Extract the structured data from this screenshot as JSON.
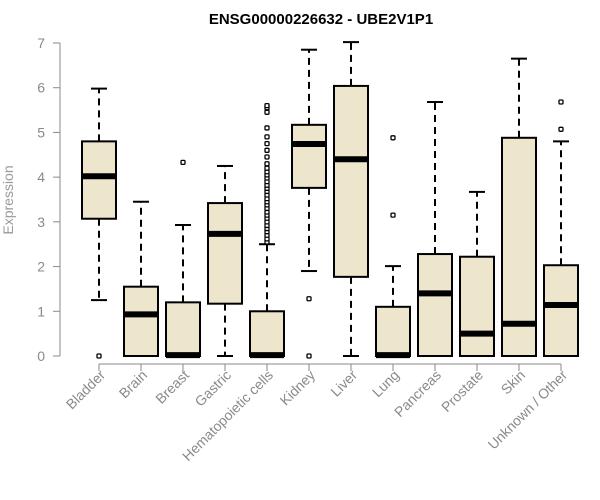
{
  "chart_data": {
    "type": "boxplot",
    "title": "ENSG00000226632 - UBE2V1P1",
    "ylabel": "Expression",
    "xlabel": "",
    "ylim": [
      0,
      7
    ],
    "yticks": [
      0,
      1,
      2,
      3,
      4,
      5,
      6,
      7
    ],
    "grid": false,
    "legend": "none",
    "box_fill": "#ede6cd",
    "categories": [
      "Bladder",
      "Brain",
      "Breast",
      "Gastric",
      "Hematopoietic cells",
      "Kidney",
      "Liver",
      "Lung",
      "Pancreas",
      "Prostate",
      "Skin",
      "Unknown / Other"
    ],
    "boxes": [
      {
        "name": "Bladder",
        "whisker_low": 1.25,
        "q1": 3.07,
        "median": 4.02,
        "q3": 4.8,
        "whisker_high": 5.98,
        "outliers": [
          0.0
        ]
      },
      {
        "name": "Brain",
        "whisker_low": 0.0,
        "q1": 0.0,
        "median": 0.93,
        "q3": 1.55,
        "whisker_high": 3.45,
        "outliers": []
      },
      {
        "name": "Breast",
        "whisker_low": 0.0,
        "q1": 0.0,
        "median": 0.02,
        "q3": 1.2,
        "whisker_high": 2.93,
        "outliers": [
          4.33
        ]
      },
      {
        "name": "Gastric",
        "whisker_low": 0.0,
        "q1": 1.17,
        "median": 2.73,
        "q3": 3.42,
        "whisker_high": 4.25,
        "outliers": []
      },
      {
        "name": "Hematopoietic cells",
        "whisker_low": 0.0,
        "q1": 0.0,
        "median": 0.02,
        "q3": 1.0,
        "whisker_high": 2.5,
        "outliers": [
          2.55,
          2.62,
          2.7,
          2.78,
          2.85,
          2.92,
          3.0,
          3.08,
          3.15,
          3.22,
          3.3,
          3.38,
          3.45,
          3.52,
          3.6,
          3.68,
          3.75,
          3.82,
          3.9,
          3.98,
          4.05,
          4.12,
          4.2,
          4.3,
          4.45,
          4.6,
          4.75,
          4.9,
          5.1,
          5.45,
          5.55,
          5.6
        ]
      },
      {
        "name": "Kidney",
        "whisker_low": 1.9,
        "q1": 3.76,
        "median": 4.74,
        "q3": 5.17,
        "whisker_high": 6.85,
        "outliers": [
          1.28,
          0.0
        ]
      },
      {
        "name": "Liver",
        "whisker_low": 0.0,
        "q1": 1.77,
        "median": 4.4,
        "q3": 6.04,
        "whisker_high": 7.02,
        "outliers": []
      },
      {
        "name": "Lung",
        "whisker_low": 0.0,
        "q1": 0.0,
        "median": 0.02,
        "q3": 1.1,
        "whisker_high": 2.01,
        "outliers": [
          3.15,
          4.88
        ]
      },
      {
        "name": "Pancreas",
        "whisker_low": 0.0,
        "q1": 0.0,
        "median": 1.4,
        "q3": 2.28,
        "whisker_high": 5.68,
        "outliers": []
      },
      {
        "name": "Prostate",
        "whisker_low": 0.0,
        "q1": 0.0,
        "median": 0.5,
        "q3": 2.22,
        "whisker_high": 3.67,
        "outliers": []
      },
      {
        "name": "Skin",
        "whisker_low": 0.0,
        "q1": 0.0,
        "median": 0.72,
        "q3": 4.88,
        "whisker_high": 6.65,
        "outliers": []
      },
      {
        "name": "Unknown / Other",
        "whisker_low": 0.0,
        "q1": 0.0,
        "median": 1.14,
        "q3": 2.03,
        "whisker_high": 4.8,
        "outliers": [
          5.07,
          5.68
        ]
      }
    ]
  }
}
